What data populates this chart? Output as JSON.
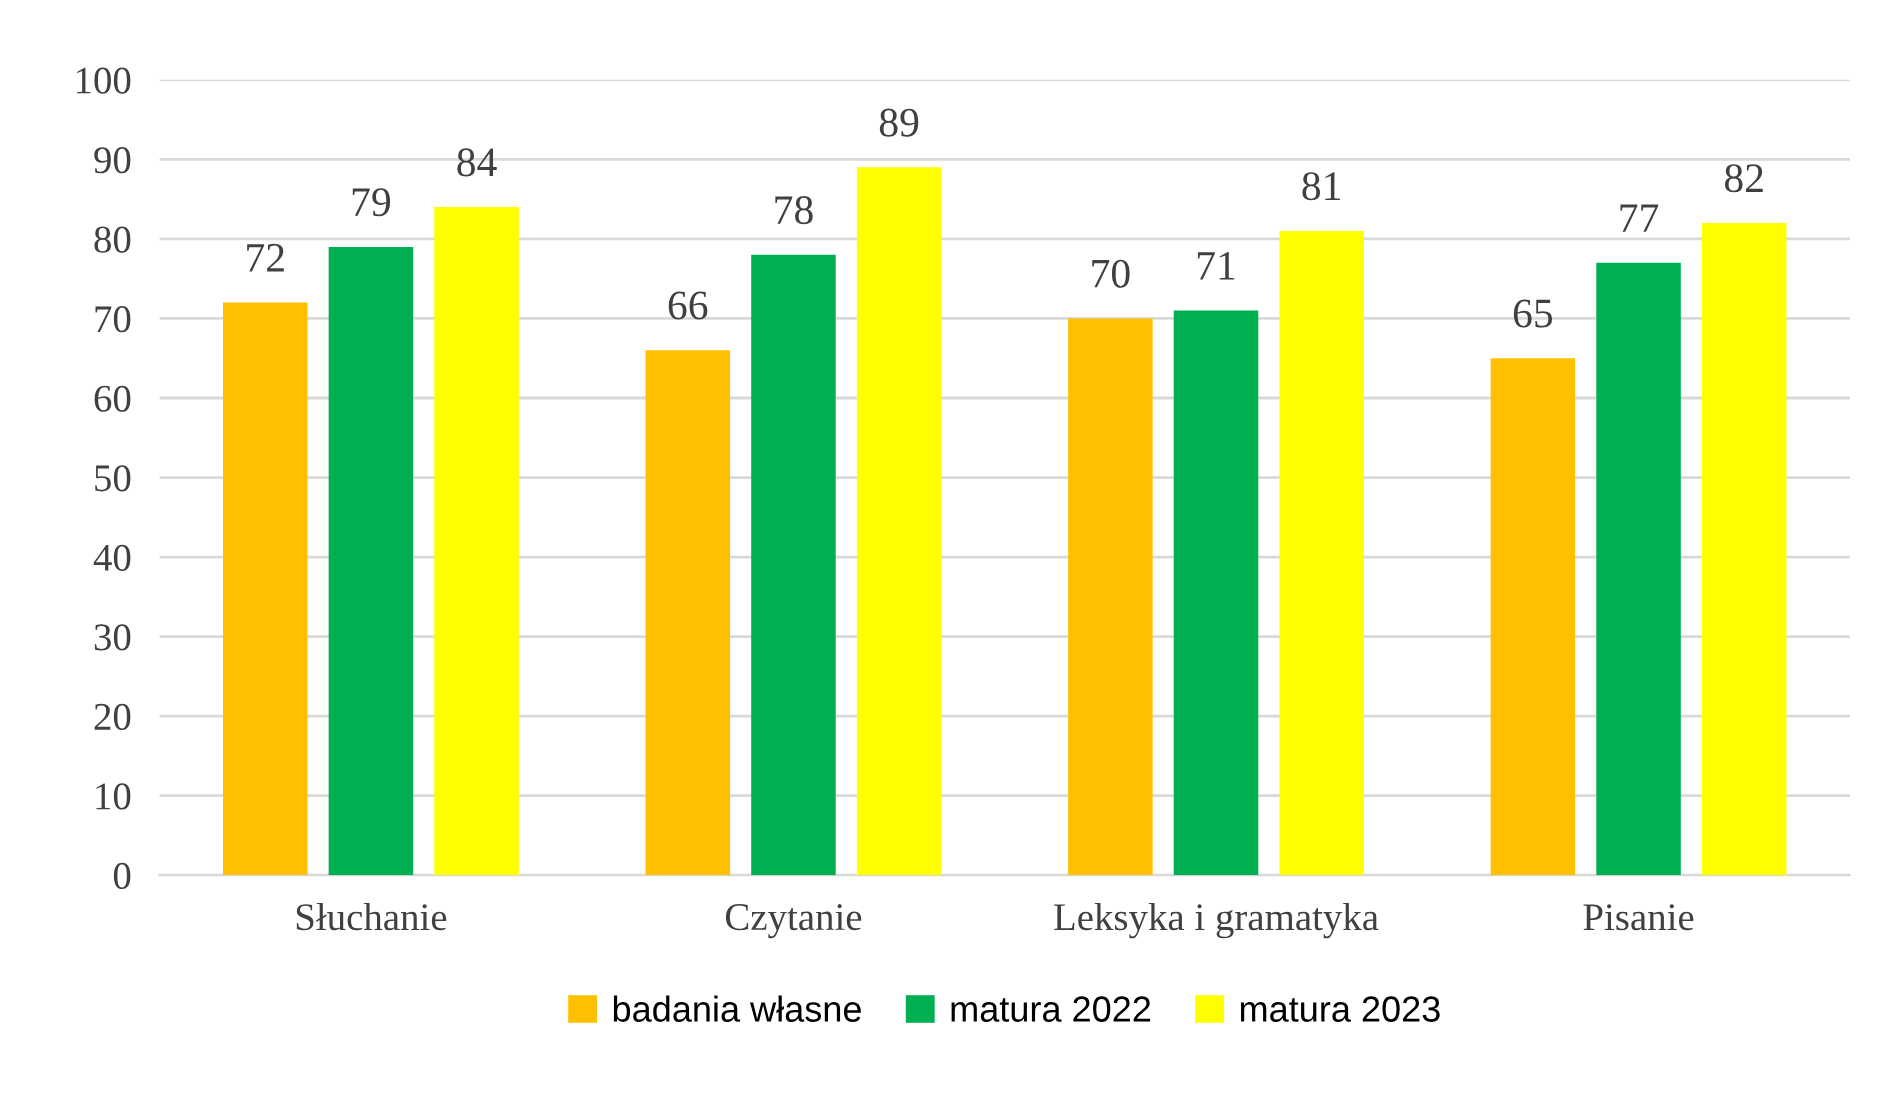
{
  "chart_data": {
    "type": "bar",
    "categories": [
      "Słuchanie",
      "Czytanie",
      "Leksyka i gramatyka",
      "Pisanie"
    ],
    "series": [
      {
        "name": "badania własne",
        "color": "#ffc000",
        "values": [
          72,
          66,
          70,
          65
        ]
      },
      {
        "name": "matura 2022",
        "color": "#00b050",
        "values": [
          79,
          78,
          71,
          77
        ]
      },
      {
        "name": "matura 2023",
        "color": "#ffff00",
        "values": [
          84,
          89,
          81,
          82
        ]
      }
    ],
    "ylim": [
      0,
      100
    ],
    "yticks": [
      0,
      10,
      20,
      30,
      40,
      50,
      60,
      70,
      80,
      90,
      100
    ],
    "grid": "y",
    "legend": "bottom",
    "data_labels": true
  }
}
